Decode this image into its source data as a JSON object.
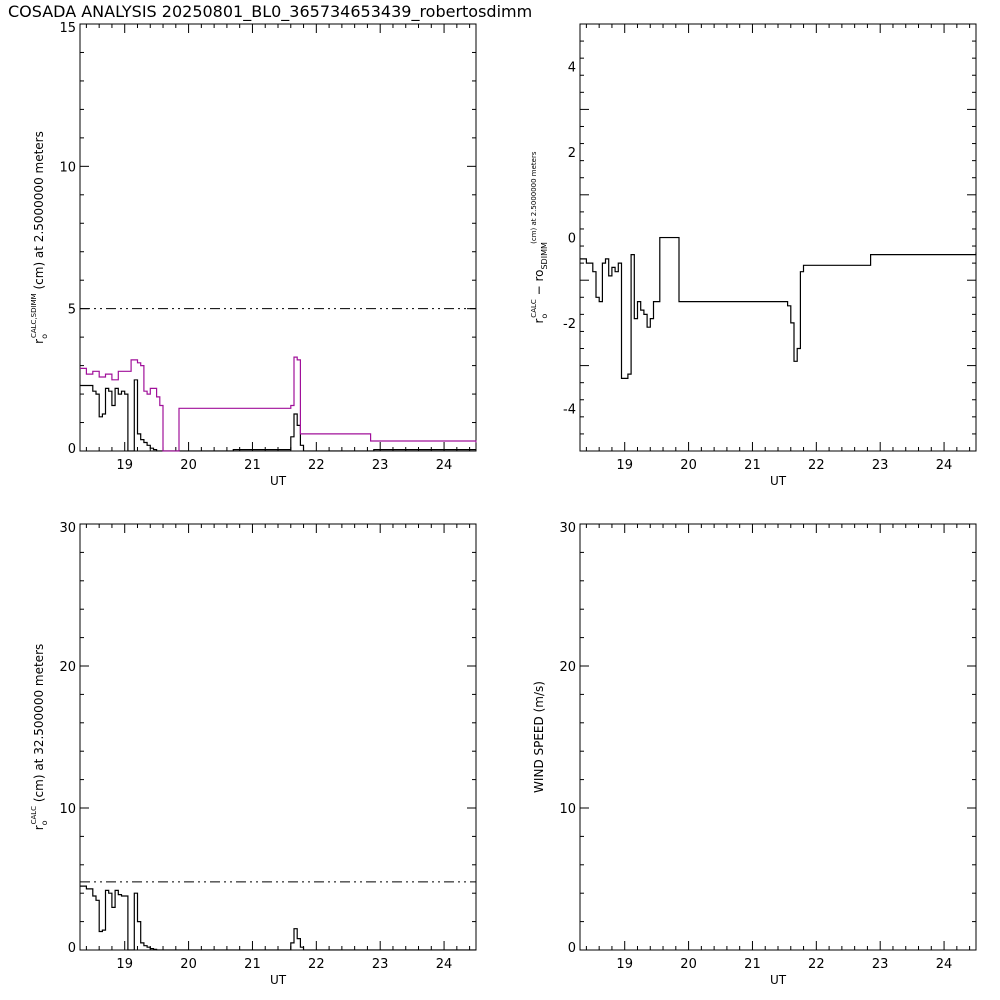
{
  "title": "COSADA ANALYSIS 20250801_BL0_365734653439_robertosdimm",
  "chart_data": [
    {
      "type": "line",
      "id": "p1",
      "xlabel": "UT",
      "ylabel_parts": [
        "r",
        "o",
        "CALC,SDIMM",
        " (cm)  at  2.5000000 meters"
      ],
      "xlim": [
        18.3,
        24.5
      ],
      "ylim": [
        0,
        15
      ],
      "xticks": [
        19,
        20,
        21,
        22,
        23,
        24
      ],
      "yticks": [
        0,
        5,
        10,
        15
      ],
      "reference_line": {
        "y": 5,
        "style": "dash-dot"
      },
      "series": [
        {
          "color": "#000000",
          "step": true,
          "x": [
            18.3,
            18.4,
            18.5,
            18.55,
            18.6,
            18.65,
            18.7,
            18.75,
            18.8,
            18.85,
            18.9,
            18.95,
            19.0,
            19.05,
            19.1,
            19.15,
            19.2,
            19.25,
            19.3,
            19.35,
            19.4,
            19.45,
            19.5,
            19.55,
            19.6,
            20.7,
            21.6,
            21.65,
            21.7,
            21.75,
            21.8,
            22.9,
            23.6
          ],
          "y": [
            2.3,
            2.3,
            2.1,
            2.0,
            1.2,
            1.3,
            2.2,
            2.1,
            1.6,
            2.2,
            2.0,
            2.1,
            2.0,
            0.0,
            0.0,
            2.5,
            0.6,
            0.4,
            0.3,
            0.2,
            0.1,
            0.05,
            0.0,
            0.0,
            0.0,
            0.05,
            0.5,
            1.3,
            0.9,
            0.2,
            0.0,
            0.05,
            0.05
          ]
        },
        {
          "color": "#a0109a",
          "step": true,
          "x": [
            18.3,
            18.4,
            18.5,
            18.6,
            18.7,
            18.8,
            18.9,
            19.0,
            19.1,
            19.2,
            19.25,
            19.3,
            19.35,
            19.4,
            19.5,
            19.55,
            19.6,
            19.85,
            21.6,
            21.65,
            21.7,
            21.75,
            21.8,
            22.85,
            24.5
          ],
          "y": [
            2.9,
            2.7,
            2.8,
            2.6,
            2.7,
            2.5,
            2.8,
            2.8,
            3.2,
            3.1,
            3.0,
            2.1,
            2.0,
            2.2,
            1.9,
            1.6,
            0.0,
            1.5,
            1.6,
            3.3,
            3.2,
            0.6,
            0.6,
            0.35,
            0.3
          ]
        }
      ]
    },
    {
      "type": "line",
      "id": "p2",
      "xlabel": "UT",
      "ylabel_parts": [
        "r",
        "o",
        "CALC",
        " − r",
        "o",
        "SDIMM",
        " (cm)  at  2.5000000 meters"
      ],
      "xlim": [
        18.3,
        24.5
      ],
      "ylim": [
        -5,
        5
      ],
      "xticks": [
        19,
        20,
        21,
        22,
        23,
        24
      ],
      "yticks": [
        -4,
        -2,
        0,
        2,
        4
      ],
      "series": [
        {
          "color": "#000000",
          "step": true,
          "x": [
            18.3,
            18.4,
            18.5,
            18.55,
            18.6,
            18.65,
            18.7,
            18.75,
            18.8,
            18.85,
            18.9,
            18.95,
            19.0,
            19.05,
            19.1,
            19.15,
            19.2,
            19.25,
            19.3,
            19.35,
            19.4,
            19.45,
            19.5,
            19.55,
            19.6,
            19.65,
            19.85,
            21.55,
            21.6,
            21.65,
            21.7,
            21.75,
            21.8,
            22.85,
            24.5
          ],
          "y": [
            -0.5,
            -0.6,
            -0.8,
            -1.4,
            -1.5,
            -0.6,
            -0.5,
            -0.9,
            -0.7,
            -0.8,
            -0.6,
            -3.3,
            -3.3,
            -3.2,
            -0.4,
            -1.9,
            -1.5,
            -1.7,
            -1.8,
            -2.1,
            -1.9,
            -1.5,
            -1.5,
            0.0,
            0.0,
            0.0,
            -1.5,
            -1.6,
            -2.0,
            -2.9,
            -2.6,
            -0.8,
            -0.65,
            -0.4,
            -0.35
          ]
        }
      ]
    },
    {
      "type": "line",
      "id": "p3",
      "xlabel": "UT",
      "ylabel_parts": [
        "r",
        "o",
        "CALC",
        " (cm)  at  32.500000 meters"
      ],
      "xlim": [
        18.3,
        24.5
      ],
      "ylim": [
        0,
        30
      ],
      "xticks": [
        19,
        20,
        21,
        22,
        23,
        24
      ],
      "yticks": [
        0,
        10,
        20,
        30
      ],
      "reference_line": {
        "y": 4.8,
        "style": "dash-dot"
      },
      "series": [
        {
          "color": "#000000",
          "step": true,
          "x": [
            18.3,
            18.4,
            18.5,
            18.55,
            18.6,
            18.65,
            18.7,
            18.75,
            18.8,
            18.85,
            18.9,
            18.95,
            19.0,
            19.05,
            19.1,
            19.15,
            19.2,
            19.25,
            19.3,
            19.35,
            19.4,
            19.45,
            19.5,
            19.55,
            19.6,
            21.6,
            21.65,
            21.7,
            21.75,
            21.8
          ],
          "y": [
            4.5,
            4.3,
            3.8,
            3.5,
            1.3,
            1.4,
            4.2,
            4.0,
            3.0,
            4.2,
            3.9,
            3.8,
            3.8,
            0.0,
            0.0,
            4.0,
            2.0,
            0.5,
            0.3,
            0.2,
            0.1,
            0.05,
            0.0,
            0.0,
            0.0,
            0.5,
            1.5,
            0.8,
            0.2,
            0.0
          ]
        }
      ]
    },
    {
      "type": "line",
      "id": "p4",
      "xlabel": "UT",
      "ylabel_parts": [
        "WIND SPEED (m/s)"
      ],
      "xlim": [
        18.3,
        24.5
      ],
      "ylim": [
        0,
        30
      ],
      "xticks": [
        19,
        20,
        21,
        22,
        23,
        24
      ],
      "yticks": [
        0,
        10,
        20,
        30
      ],
      "series": []
    }
  ]
}
